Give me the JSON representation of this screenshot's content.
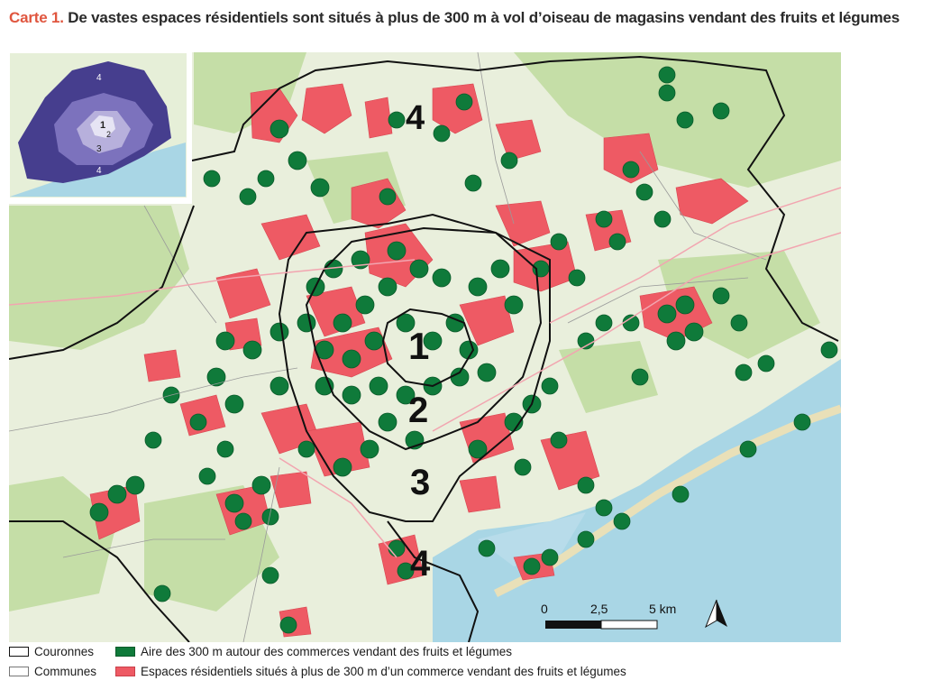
{
  "title": {
    "prefix": "Carte 1.",
    "text": "De vastes espaces résidentiels sont situés à plus de 300 m à vol d’oiseau de magasins vendant des fruits et légumes"
  },
  "map": {
    "ring_labels": [
      "1",
      "2",
      "3",
      "4",
      "4"
    ],
    "inset_labels": [
      "4",
      "1",
      "2",
      "3",
      "4"
    ],
    "scale_labels": [
      "0",
      "2,5",
      "5 km"
    ],
    "north_arrow": "north-arrow-icon"
  },
  "legend": {
    "couronnes": "Couronnes",
    "communes": "Communes",
    "aire": "Aire des 300 m autour des commerces vendant des fruits et légumes",
    "espaces": "Espaces résidentiels situés à plus de 300 m d’un commerce vendant des fruits et légumes"
  },
  "colors": {
    "title_accent": "#e0563f",
    "aire_green": "#0f7a3a",
    "espaces_red": "#ee5a64",
    "sea": "#a9d6e5",
    "land": "#e8efd9",
    "forest": "#c6dfa6"
  }
}
